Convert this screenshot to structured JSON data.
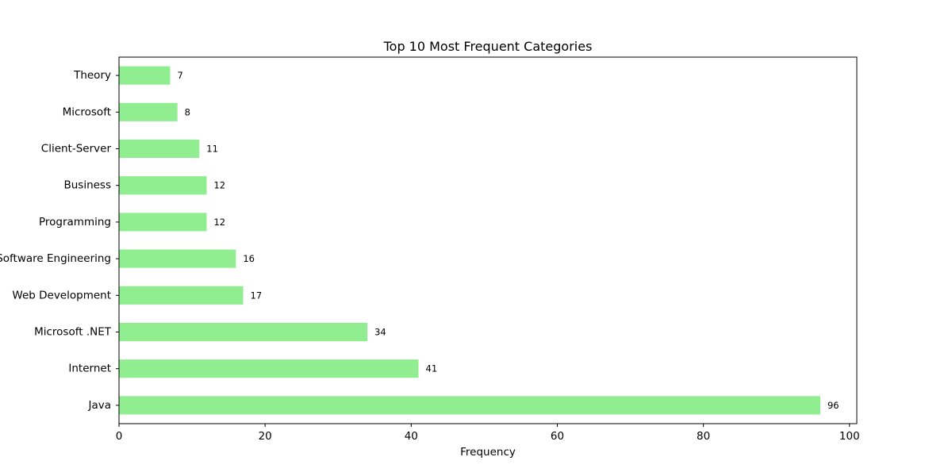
{
  "chart_data": {
    "type": "bar",
    "orientation": "horizontal",
    "title": "Top 10 Most Frequent Categories",
    "xlabel": "Frequency",
    "ylabel": "",
    "categories": [
      "Java",
      "Internet",
      "Microsoft .NET",
      "Web Development",
      "Software Engineering",
      "Programming",
      "Business",
      "Client-Server",
      "Microsoft",
      "Theory"
    ],
    "values": [
      96,
      41,
      34,
      17,
      16,
      12,
      12,
      11,
      8,
      7
    ],
    "xlim": [
      0,
      101
    ],
    "xticks": [
      0,
      20,
      40,
      60,
      80,
      100
    ],
    "xtick_labels": [
      "0",
      "20",
      "40",
      "60",
      "80",
      "100"
    ],
    "grid": false,
    "bar_color": "#90ee90",
    "data_labels": true
  }
}
